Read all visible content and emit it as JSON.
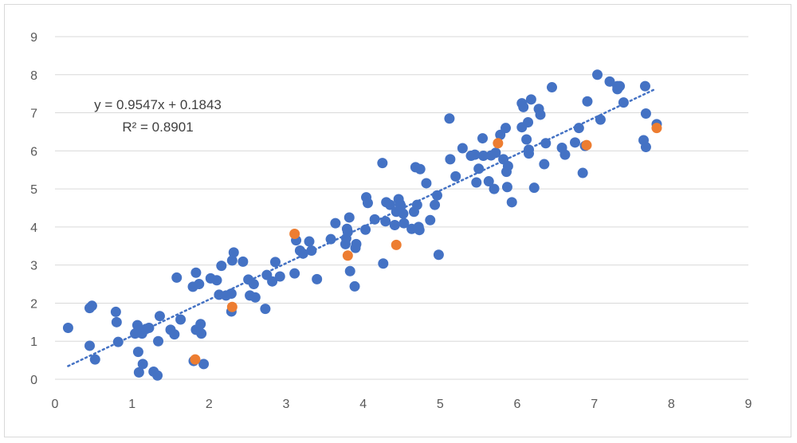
{
  "chart_data": {
    "type": "scatter",
    "title": "",
    "xlabel": "",
    "ylabel": "",
    "xlim": [
      0,
      9
    ],
    "ylim": [
      0,
      9
    ],
    "xticks": [
      "0",
      "1",
      "2",
      "3",
      "4",
      "5",
      "6",
      "7",
      "8",
      "9"
    ],
    "yticks": [
      "0",
      "1",
      "2",
      "3",
      "4",
      "5",
      "6",
      "7",
      "8",
      "9"
    ],
    "grid": "horizontal",
    "colors": {
      "blue": "#4472C4",
      "orange": "#ED7D31",
      "grid": "#D9D9D9",
      "text": "#595959"
    },
    "trendline": {
      "type": "linear",
      "slope": 0.9547,
      "intercept": 0.1843,
      "x_range": [
        0.17,
        7.8
      ],
      "equation_text": "y = 0.9547x + 0.1843",
      "r2_text": "R² = 0.8901"
    },
    "series": [
      {
        "color": "#4472C4",
        "points": [
          [
            0.17,
            1.35
          ],
          [
            0.45,
            0.88
          ],
          [
            0.45,
            1.87
          ],
          [
            0.48,
            1.93
          ],
          [
            0.52,
            0.52
          ],
          [
            0.79,
            1.77
          ],
          [
            0.8,
            1.5
          ],
          [
            0.82,
            0.98
          ],
          [
            1.04,
            1.2
          ],
          [
            1.07,
            1.42
          ],
          [
            1.08,
            1.28
          ],
          [
            1.08,
            0.72
          ],
          [
            1.09,
            0.18
          ],
          [
            1.13,
            1.2
          ],
          [
            1.14,
            0.4
          ],
          [
            1.18,
            1.32
          ],
          [
            1.22,
            1.35
          ],
          [
            1.28,
            0.2
          ],
          [
            1.33,
            0.1
          ],
          [
            1.34,
            1.0
          ],
          [
            1.36,
            1.66
          ],
          [
            1.5,
            1.3
          ],
          [
            1.55,
            1.18
          ],
          [
            1.58,
            2.67
          ],
          [
            1.63,
            1.57
          ],
          [
            1.79,
            2.43
          ],
          [
            1.8,
            0.48
          ],
          [
            1.83,
            2.8
          ],
          [
            1.83,
            1.3
          ],
          [
            1.87,
            2.5
          ],
          [
            1.89,
            1.45
          ],
          [
            1.9,
            1.2
          ],
          [
            1.93,
            0.4
          ],
          [
            2.02,
            2.65
          ],
          [
            2.1,
            2.6
          ],
          [
            2.13,
            2.22
          ],
          [
            2.16,
            2.98
          ],
          [
            2.22,
            2.2
          ],
          [
            2.29,
            2.25
          ],
          [
            2.29,
            1.78
          ],
          [
            2.3,
            3.12
          ],
          [
            2.32,
            3.33
          ],
          [
            2.44,
            3.09
          ],
          [
            2.51,
            2.62
          ],
          [
            2.53,
            2.2
          ],
          [
            2.58,
            2.5
          ],
          [
            2.6,
            2.15
          ],
          [
            2.73,
            1.85
          ],
          [
            2.75,
            2.74
          ],
          [
            2.82,
            2.57
          ],
          [
            2.86,
            3.08
          ],
          [
            2.92,
            2.7
          ],
          [
            3.11,
            2.78
          ],
          [
            3.13,
            3.65
          ],
          [
            3.18,
            3.38
          ],
          [
            3.22,
            3.3
          ],
          [
            3.3,
            3.62
          ],
          [
            3.33,
            3.38
          ],
          [
            3.4,
            2.63
          ],
          [
            3.58,
            3.68
          ],
          [
            3.64,
            4.1
          ],
          [
            3.77,
            3.55
          ],
          [
            3.78,
            3.7
          ],
          [
            3.79,
            3.95
          ],
          [
            3.8,
            3.87
          ],
          [
            3.82,
            4.25
          ],
          [
            3.83,
            2.84
          ],
          [
            3.89,
            2.44
          ],
          [
            3.9,
            3.45
          ],
          [
            3.91,
            3.55
          ],
          [
            4.03,
            3.93
          ],
          [
            4.04,
            4.78
          ],
          [
            4.06,
            4.63
          ],
          [
            4.15,
            4.2
          ],
          [
            4.25,
            5.68
          ],
          [
            4.26,
            3.04
          ],
          [
            4.29,
            4.15
          ],
          [
            4.3,
            4.65
          ],
          [
            4.35,
            4.58
          ],
          [
            4.41,
            4.05
          ],
          [
            4.43,
            4.4
          ],
          [
            4.46,
            4.73
          ],
          [
            4.48,
            4.6
          ],
          [
            4.49,
            4.55
          ],
          [
            4.52,
            4.35
          ],
          [
            4.53,
            4.1
          ],
          [
            4.63,
            3.95
          ],
          [
            4.66,
            4.4
          ],
          [
            4.68,
            5.57
          ],
          [
            4.7,
            4.58
          ],
          [
            4.72,
            4.0
          ],
          [
            4.73,
            3.92
          ],
          [
            4.74,
            5.52
          ],
          [
            4.82,
            5.15
          ],
          [
            4.87,
            4.18
          ],
          [
            4.93,
            4.58
          ],
          [
            4.96,
            4.83
          ],
          [
            4.98,
            3.27
          ],
          [
            5.12,
            6.85
          ],
          [
            5.13,
            5.78
          ],
          [
            5.2,
            5.33
          ],
          [
            5.29,
            6.07
          ],
          [
            5.4,
            5.87
          ],
          [
            5.45,
            5.9
          ],
          [
            5.47,
            5.17
          ],
          [
            5.5,
            5.53
          ],
          [
            5.55,
            6.33
          ],
          [
            5.56,
            5.87
          ],
          [
            5.63,
            5.2
          ],
          [
            5.66,
            5.88
          ],
          [
            5.7,
            5.0
          ],
          [
            5.72,
            5.95
          ],
          [
            5.78,
            6.42
          ],
          [
            5.82,
            5.78
          ],
          [
            5.85,
            6.6
          ],
          [
            5.86,
            5.45
          ],
          [
            5.87,
            5.05
          ],
          [
            5.88,
            5.6
          ],
          [
            5.93,
            4.65
          ],
          [
            6.06,
            7.25
          ],
          [
            6.06,
            6.62
          ],
          [
            6.08,
            7.15
          ],
          [
            6.12,
            6.3
          ],
          [
            6.14,
            6.75
          ],
          [
            6.15,
            6.03
          ],
          [
            6.15,
            5.93
          ],
          [
            6.18,
            7.35
          ],
          [
            6.22,
            5.03
          ],
          [
            6.28,
            7.1
          ],
          [
            6.3,
            6.95
          ],
          [
            6.35,
            5.65
          ],
          [
            6.37,
            6.2
          ],
          [
            6.45,
            7.67
          ],
          [
            6.58,
            6.08
          ],
          [
            6.62,
            5.9
          ],
          [
            6.75,
            6.22
          ],
          [
            6.8,
            6.6
          ],
          [
            6.85,
            5.42
          ],
          [
            6.88,
            6.13
          ],
          [
            6.91,
            7.3
          ],
          [
            7.04,
            8.0
          ],
          [
            7.08,
            6.82
          ],
          [
            7.2,
            7.82
          ],
          [
            7.3,
            7.7
          ],
          [
            7.3,
            7.62
          ],
          [
            7.33,
            7.7
          ],
          [
            7.38,
            7.27
          ],
          [
            7.64,
            6.28
          ],
          [
            7.66,
            7.7
          ],
          [
            7.67,
            6.98
          ],
          [
            7.67,
            6.1
          ],
          [
            7.81,
            6.7
          ]
        ]
      },
      {
        "color": "#ED7D31",
        "points": [
          [
            1.82,
            0.52
          ],
          [
            2.3,
            1.9
          ],
          [
            3.11,
            3.82
          ],
          [
            3.8,
            3.25
          ],
          [
            4.43,
            3.53
          ],
          [
            5.75,
            6.2
          ],
          [
            6.9,
            6.15
          ],
          [
            7.81,
            6.6
          ]
        ]
      }
    ]
  }
}
